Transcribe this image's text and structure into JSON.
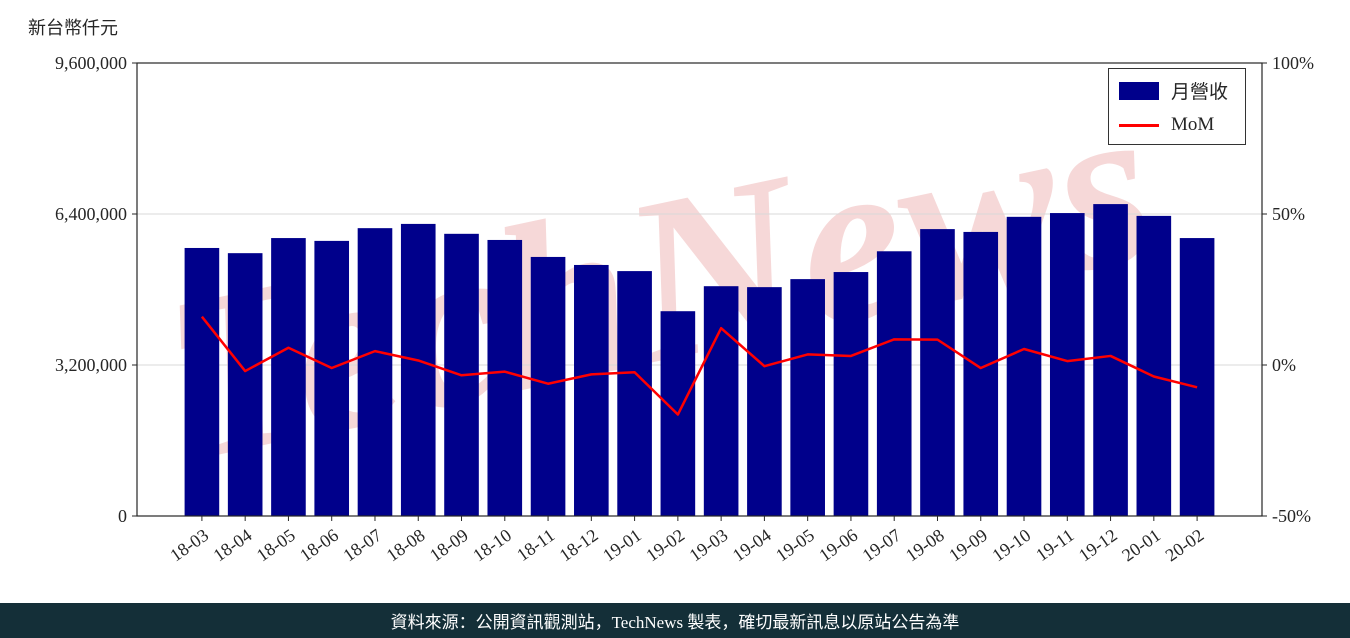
{
  "page": {
    "y_axis_title": "新台幣仟元",
    "watermark": "TechNews",
    "footer": "資料來源：公開資訊觀測站，TechNews 製表，確切最新訊息以原站公告為準"
  },
  "legend": {
    "series1_label": "月營收",
    "series2_label": "MoM"
  },
  "colors": {
    "bar": "#00008b",
    "line": "#ff0000",
    "grid": "#d8d8d8",
    "axis": "#262626",
    "watermark": "rgba(208,62,62,0.20)",
    "footer_bg": "#142f38"
  },
  "chart_data": {
    "type": "bar",
    "title": "",
    "categories": [
      "18-03",
      "18-04",
      "18-05",
      "18-06",
      "18-07",
      "18-08",
      "18-09",
      "18-10",
      "18-11",
      "18-12",
      "19-01",
      "19-02",
      "19-03",
      "19-04",
      "19-05",
      "19-06",
      "19-07",
      "19-08",
      "19-09",
      "19-10",
      "19-11",
      "19-12",
      "20-01",
      "20-02"
    ],
    "series": [
      {
        "name": "月營收",
        "type": "bar",
        "axis": "left",
        "color": "#00008b",
        "values": [
          5680000,
          5570000,
          5890000,
          5830000,
          6100000,
          6190000,
          5980000,
          5850000,
          5490000,
          5320000,
          5190000,
          4340000,
          4870000,
          4850000,
          5020000,
          5170000,
          5610000,
          6080000,
          6020000,
          6340000,
          6420000,
          6610000,
          6360000,
          5890000
        ]
      },
      {
        "name": "MoM",
        "type": "line",
        "axis": "right",
        "color": "#ff0000",
        "values": [
          16.0,
          -2.0,
          5.7,
          -1.0,
          4.6,
          1.5,
          -3.4,
          -2.2,
          -6.2,
          -3.1,
          -2.4,
          -16.4,
          12.2,
          -0.4,
          3.5,
          3.0,
          8.5,
          8.4,
          -1.0,
          5.3,
          1.3,
          3.0,
          -3.8,
          -7.4
        ]
      }
    ],
    "left_axis": {
      "title": "新台幣仟元",
      "range": [
        0,
        9600000
      ],
      "ticks": [
        0,
        3200000,
        6400000,
        9600000
      ],
      "tick_labels": [
        "0",
        "3,200,000",
        "6,400,000",
        "9,600,000"
      ]
    },
    "right_axis": {
      "range": [
        -50,
        100
      ],
      "ticks": [
        -50,
        0,
        50,
        100
      ],
      "tick_labels": [
        "-50%",
        "0%",
        "50%",
        "100%"
      ]
    },
    "grid": true,
    "legend_position": "top-right"
  }
}
